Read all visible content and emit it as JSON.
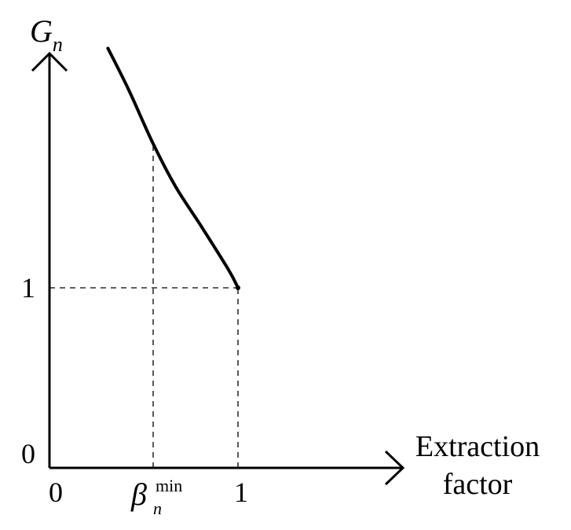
{
  "chart_data": {
    "type": "line",
    "title": "",
    "ylabel": {
      "main": "G",
      "sub": "n"
    },
    "xlabel": {
      "line1": "Extraction",
      "line2": "factor"
    },
    "x_ticks": [
      {
        "id": "x0",
        "x": 0,
        "label": "0"
      },
      {
        "id": "xbeta",
        "x": 0.55,
        "main": "β",
        "sup": "min",
        "sub": "n"
      },
      {
        "id": "x1",
        "x": 1,
        "label": "1"
      }
    ],
    "y_ticks": [
      {
        "id": "y0",
        "y": 0,
        "label": "0"
      },
      {
        "id": "y1",
        "y": 1,
        "label": "1"
      }
    ],
    "series": [
      {
        "x": [
          0.31,
          0.42,
          0.55,
          0.67,
          0.8,
          0.95,
          1.0
        ],
        "y": [
          2.33,
          2.1,
          1.8,
          1.56,
          1.35,
          1.1,
          1.0
        ]
      }
    ],
    "guides": [
      {
        "type": "vertical",
        "x": 0.55,
        "y_to": 1.8
      },
      {
        "type": "vertical",
        "x": 1.0,
        "y_to": 1.0
      },
      {
        "type": "horizontal",
        "y": 1.0,
        "x_to": 1.0
      }
    ],
    "xlim": [
      0,
      1.35
    ],
    "ylim": [
      0,
      2.3
    ],
    "grid": false,
    "legend": "none"
  }
}
